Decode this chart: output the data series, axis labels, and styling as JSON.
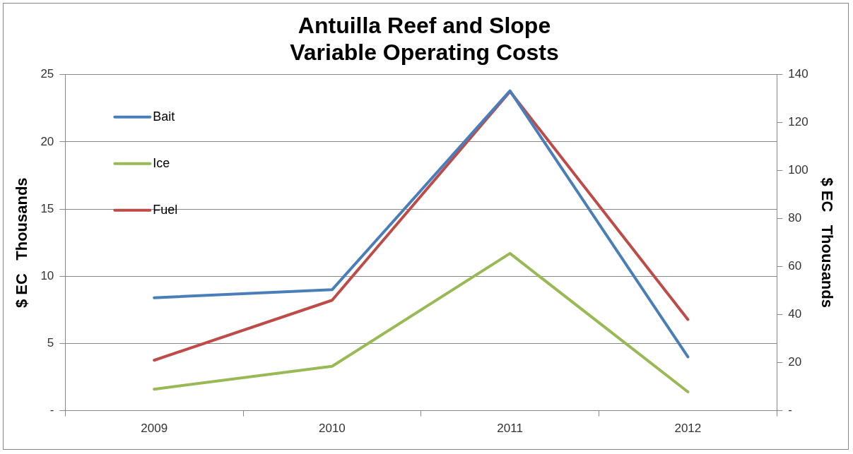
{
  "chart_data": {
    "type": "line",
    "title": "Antuilla Reef and Slope\nVariable Operating Costs",
    "ylabel": "$ EC   Thousands",
    "y2label": "$ EC   Thousands",
    "categories": [
      "2009",
      "2010",
      "2011",
      "2012"
    ],
    "series": [
      {
        "name": "Bait",
        "color": "#4a7ebb",
        "values": [
          8.4,
          9.0,
          23.8,
          4.0
        ]
      },
      {
        "name": "Ice",
        "color": "#98b954",
        "values": [
          1.6,
          3.3,
          11.7,
          1.4
        ]
      },
      {
        "name": "Fuel",
        "color": "#be4b48",
        "axis": "y2",
        "values": [
          21,
          46,
          133,
          38
        ]
      }
    ],
    "ylim": [
      0,
      25
    ],
    "yticks": [
      {
        "value": 0,
        "label": "-"
      },
      5,
      10,
      15,
      20,
      25
    ],
    "y2lim": [
      0,
      140
    ],
    "y2ticks": [
      {
        "value": 0,
        "label": "-"
      },
      20,
      40,
      60,
      80,
      100,
      120,
      140
    ],
    "grid": "y",
    "legend": "top left",
    "marker": "none",
    "line_style": "solid"
  }
}
